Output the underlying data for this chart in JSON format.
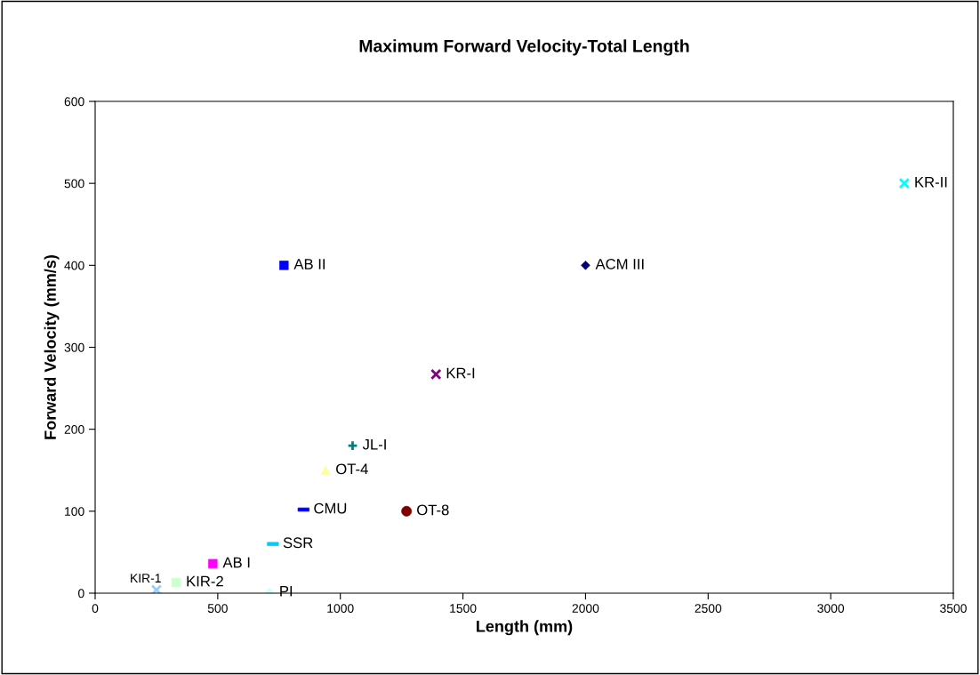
{
  "chart_data": {
    "type": "scatter",
    "title": "Maximum Forward Velocity-Total Length",
    "xlabel": "Length (mm)",
    "ylabel": "Forward Velocity (mm/s)",
    "xlim": [
      0,
      3500
    ],
    "xticks": [
      0,
      500,
      1000,
      1500,
      2000,
      2500,
      3000,
      3500
    ],
    "ylim": [
      0,
      600
    ],
    "yticks": [
      0,
      100,
      200,
      300,
      400,
      500,
      600
    ],
    "grid": false,
    "legend": false,
    "series": [
      {
        "name": "KR-II",
        "color": "#00ffff",
        "marker": "x",
        "x": [
          3300
        ],
        "values": [
          500
        ]
      },
      {
        "name": "ACM III",
        "color": "#000080",
        "marker": "diamond",
        "x": [
          2000
        ],
        "values": [
          400
        ]
      },
      {
        "name": "AB II",
        "color": "#0000ff",
        "marker": "square",
        "x": [
          770
        ],
        "values": [
          400
        ]
      },
      {
        "name": "KR-I",
        "color": "#800080",
        "marker": "cross",
        "x": [
          1390
        ],
        "values": [
          267
        ]
      },
      {
        "name": "JL-I",
        "color": "#008080",
        "marker": "plus",
        "x": [
          1050
        ],
        "values": [
          180
        ]
      },
      {
        "name": "OT-4",
        "color": "#ffff99",
        "marker": "triangle",
        "x": [
          940
        ],
        "values": [
          150
        ]
      },
      {
        "name": "CMU",
        "color": "#0000ff",
        "x": [
          850
        ],
        "values": [
          102
        ]
      },
      {
        "name": "OT-8",
        "color": "#800000",
        "marker": "circle",
        "x": [
          1270
        ],
        "values": [
          100
        ]
      },
      {
        "name": "SSR",
        "color": "#00ccff",
        "x": [
          725
        ],
        "values": [
          60
        ]
      },
      {
        "name": "AB I",
        "color": "#ff00ff",
        "marker": "square",
        "x": [
          480
        ],
        "values": [
          36
        ]
      },
      {
        "name": "KIR-2",
        "color": "#ccffcc",
        "marker": "square",
        "x": [
          330
        ],
        "values": [
          13
        ]
      },
      {
        "name": "KIR-1",
        "color": "#99ccff",
        "marker": "x",
        "x": [
          250
        ],
        "values": [
          4
        ]
      },
      {
        "name": "PI",
        "color": "#ccffff",
        "marker": "diamond",
        "x": [
          710
        ],
        "values": [
          1
        ]
      }
    ]
  }
}
